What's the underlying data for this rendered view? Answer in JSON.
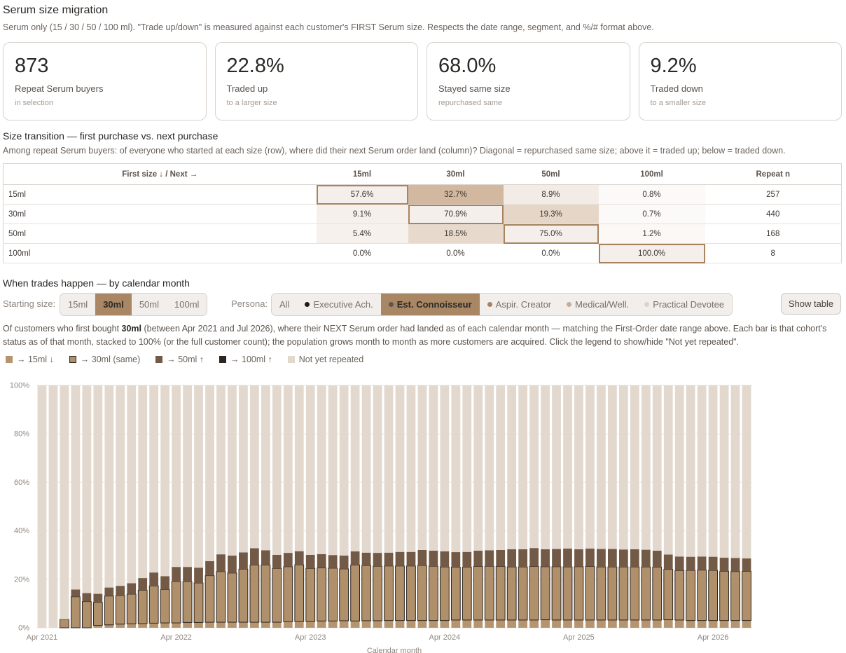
{
  "header": {
    "title": "Serum size migration",
    "description": "Serum only (15 / 30 / 50 / 100 ml). \"Trade up/down\" is measured against each customer's FIRST Serum size. Respects the date range, segment, and %/# format above."
  },
  "kpis": [
    {
      "value": "873",
      "label": "Repeat Serum buyers",
      "sub": "in selection"
    },
    {
      "value": "22.8%",
      "label": "Traded up",
      "sub": "to a larger size"
    },
    {
      "value": "68.0%",
      "label": "Stayed same size",
      "sub": "repurchased same"
    },
    {
      "value": "9.2%",
      "label": "Traded down",
      "sub": "to a smaller size"
    }
  ],
  "transition": {
    "title": "Size transition — first purchase vs. next purchase",
    "description": "Among repeat Serum buyers: of everyone who started at each size (row), where did their next Serum order land (column)? Diagonal = repurchased same size; above it = traded up; below = traded down.",
    "headers": [
      "First size ↓ / Next →",
      "15ml",
      "30ml",
      "50ml",
      "100ml",
      "Repeat n"
    ],
    "rows": [
      {
        "label": "15ml",
        "cells": [
          "57.6%",
          "32.7%",
          "8.9%",
          "0.8%"
        ],
        "n": "257"
      },
      {
        "label": "30ml",
        "cells": [
          "9.1%",
          "70.9%",
          "19.3%",
          "0.7%"
        ],
        "n": "440"
      },
      {
        "label": "50ml",
        "cells": [
          "5.4%",
          "18.5%",
          "75.0%",
          "1.2%"
        ],
        "n": "168"
      },
      {
        "label": "100ml",
        "cells": [
          "0.0%",
          "0.0%",
          "0.0%",
          "100.0%"
        ],
        "n": "8"
      }
    ]
  },
  "timing": {
    "title": "When trades happen — by calendar month",
    "starting_label": "Starting size:",
    "starting_options": [
      "15ml",
      "30ml",
      "50ml",
      "100ml"
    ],
    "starting_selected": "30ml",
    "persona_label": "Persona:",
    "persona_options": [
      "All",
      "Executive Ach.",
      "Est. Connoisseur",
      "Aspir. Creator",
      "Medical/Well.",
      "Practical Devotee"
    ],
    "persona_colors": [
      "",
      "#1f1b18",
      "#5e5650",
      "#a88262",
      "#c3ad98",
      "#ddd2c7"
    ],
    "persona_selected": "Est. Connoisseur",
    "show_table": "Show table",
    "expl_pre": "Of customers who first bought ",
    "expl_bold": "30ml",
    "expl_post": " (between Apr 2021 and Jul 2026), where their NEXT Serum order had landed as of each calendar month — matching the First-Order date range above. Each bar is that cohort's status as of that month, stacked to 100% (or the full customer count); the population grows month to month as more customers are acquired. Click the legend to show/hide \"Not yet repeated\"."
  },
  "legend": [
    {
      "label": "→ 15ml ↓",
      "color": "#b5956f"
    },
    {
      "label": "→ 30ml (same)",
      "color": "#b0906a"
    },
    {
      "label": "→ 50ml ↑",
      "color": "#725a46"
    },
    {
      "label": "→ 100ml ↑",
      "color": "#2c2520"
    },
    {
      "label": "Not yet repeated",
      "color": "#e2d8ce"
    }
  ],
  "chart_data": {
    "type": "bar",
    "stacked": true,
    "xlabel": "Calendar month",
    "ylabel": "",
    "ylim": [
      0,
      100
    ],
    "y_ticks": [
      "0%",
      "20%",
      "40%",
      "60%",
      "80%",
      "100%"
    ],
    "x_ticks": [
      "Apr 2021",
      "Apr 2022",
      "Apr 2023",
      "Apr 2024",
      "Apr 2025",
      "Apr 2026"
    ],
    "first_month": "Apr 2021",
    "last_month": "Jul 2026",
    "grid": true,
    "series": [
      {
        "name": "→ 15ml ↓",
        "values": [
          0,
          0,
          0,
          0,
          0,
          1.0,
          1.2,
          1.5,
          1.6,
          1.7,
          1.9,
          2.0,
          2.0,
          2.2,
          2.2,
          2.3,
          2.3,
          2.3,
          2.3,
          2.3,
          2.3,
          2.3,
          2.5,
          2.6,
          2.6,
          2.8,
          2.8,
          2.9,
          2.8,
          2.9,
          2.9,
          3.0,
          3.0,
          3.0,
          3.0,
          3.0,
          3.0,
          3.2,
          3.2,
          3.2,
          3.2,
          3.2,
          3.2,
          3.2,
          3.2,
          3.3,
          3.2,
          3.2,
          3.2,
          3.2,
          3.2,
          3.2,
          3.2,
          3.2,
          3.2,
          3.2,
          3.3,
          3.2,
          3.0,
          3.0,
          3.0,
          3.0,
          3.0,
          3.0
        ]
      },
      {
        "name": "→ 30ml (same)",
        "values": [
          0,
          0,
          3.5,
          12.8,
          10.8,
          9.5,
          11.9,
          11.8,
          12.3,
          13.8,
          15.4,
          13.8,
          17.1,
          16.9,
          16.3,
          19.2,
          20.9,
          20.3,
          21.9,
          23.6,
          23.6,
          22.2,
          22.7,
          23.4,
          21.9,
          21.9,
          21.8,
          21.4,
          23.1,
          22.8,
          22.5,
          22.5,
          22.5,
          22.5,
          22.7,
          22.4,
          22.1,
          21.8,
          21.8,
          22.1,
          22.2,
          22.1,
          21.9,
          21.9,
          22.1,
          21.9,
          22.0,
          21.9,
          22.0,
          22.1,
          21.9,
          21.9,
          21.9,
          21.9,
          21.9,
          21.8,
          20.8,
          20.4,
          20.7,
          20.8,
          20.7,
          20.3,
          20.2,
          20.3
        ]
      },
      {
        "name": "→ 50ml ↑",
        "values": [
          0,
          0,
          0,
          3.0,
          3.5,
          3.5,
          3.5,
          4.0,
          4.5,
          5.0,
          5.5,
          5.5,
          6.0,
          6.0,
          6.3,
          6.0,
          7.1,
          7.2,
          6.9,
          6.9,
          6.1,
          5.6,
          5.7,
          5.6,
          5.6,
          5.7,
          5.4,
          5.5,
          5.6,
          5.3,
          5.5,
          5.5,
          5.8,
          5.8,
          6.4,
          6.4,
          6.4,
          6.2,
          6.3,
          6.5,
          6.6,
          6.8,
          7.3,
          7.3,
          7.6,
          7.2,
          7.3,
          7.6,
          7.2,
          7.4,
          7.4,
          7.4,
          7.2,
          7.3,
          7.1,
          6.8,
          6.1,
          5.8,
          5.6,
          5.6,
          5.6,
          5.6,
          5.6,
          5.3
        ]
      },
      {
        "name": "→ 100ml ↑",
        "values": [
          0,
          0,
          0,
          0,
          0,
          0,
          0,
          0,
          0,
          0,
          0,
          0,
          0,
          0,
          0,
          0,
          0,
          0,
          0,
          0,
          0,
          0,
          0,
          0,
          0,
          0,
          0,
          0,
          0,
          0,
          0,
          0,
          0,
          0,
          0,
          0,
          0,
          0,
          0,
          0,
          0,
          0,
          0,
          0,
          0,
          0,
          0,
          0,
          0,
          0,
          0,
          0,
          0,
          0,
          0,
          0,
          0,
          0,
          0,
          0,
          0,
          0,
          0,
          0
        ]
      },
      {
        "name": "Not yet repeated",
        "values": [
          100,
          100,
          96.5,
          84.2,
          85.7,
          86.0,
          83.4,
          82.7,
          81.6,
          79.5,
          77.2,
          78.7,
          74.9,
          74.9,
          75.2,
          72.5,
          69.7,
          70.2,
          68.9,
          67.2,
          68.0,
          69.9,
          69.1,
          68.4,
          69.9,
          69.6,
          70.0,
          70.2,
          68.5,
          69.0,
          69.1,
          69.0,
          68.7,
          68.7,
          67.9,
          68.2,
          68.5,
          68.8,
          68.7,
          68.2,
          68.0,
          67.9,
          67.6,
          67.6,
          67.1,
          67.6,
          67.5,
          67.3,
          67.6,
          67.3,
          67.5,
          67.5,
          67.7,
          67.6,
          67.8,
          68.2,
          69.8,
          70.6,
          70.7,
          70.6,
          70.7,
          71.1,
          71.2,
          71.4
        ]
      }
    ]
  }
}
